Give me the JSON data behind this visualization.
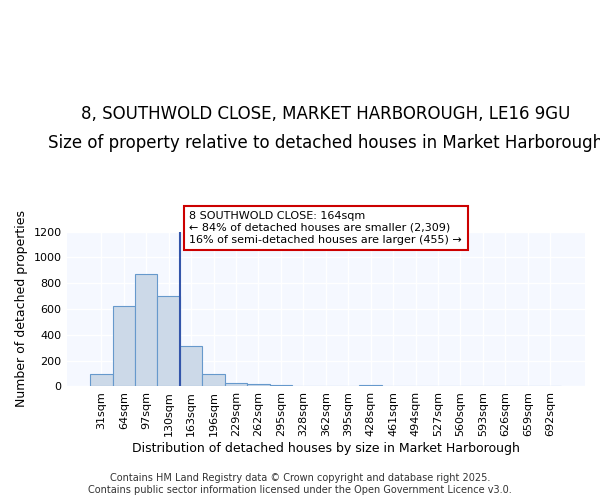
{
  "title_line1": "8, SOUTHWOLD CLOSE, MARKET HARBOROUGH, LE16 9GU",
  "title_line2": "Size of property relative to detached houses in Market Harborough",
  "xlabel": "Distribution of detached houses by size in Market Harborough",
  "ylabel": "Number of detached properties",
  "bar_color": "#ccd9e8",
  "bar_edge_color": "#6699cc",
  "background_color": "#ffffff",
  "plot_bg_color": "#f5f8ff",
  "vline_color": "#3355aa",
  "categories": [
    "31sqm",
    "64sqm",
    "97sqm",
    "130sqm",
    "163sqm",
    "196sqm",
    "229sqm",
    "262sqm",
    "295sqm",
    "328sqm",
    "362sqm",
    "395sqm",
    "428sqm",
    "461sqm",
    "494sqm",
    "527sqm",
    "560sqm",
    "593sqm",
    "626sqm",
    "659sqm",
    "692sqm"
  ],
  "values": [
    100,
    620,
    870,
    700,
    310,
    100,
    30,
    20,
    10,
    0,
    0,
    0,
    10,
    0,
    0,
    0,
    0,
    0,
    0,
    0,
    0
  ],
  "vline_x": 3.5,
  "annotation_text": "8 SOUTHWOLD CLOSE: 164sqm\n← 84% of detached houses are smaller (2,309)\n16% of semi-detached houses are larger (455) →",
  "annotation_box_color": "#ffffff",
  "annotation_edge_color": "#cc0000",
  "ylim": [
    0,
    1200
  ],
  "yticks": [
    0,
    200,
    400,
    600,
    800,
    1000,
    1200
  ],
  "footer_line1": "Contains HM Land Registry data © Crown copyright and database right 2025.",
  "footer_line2": "Contains public sector information licensed under the Open Government Licence v3.0.",
  "title_fontsize": 12,
  "subtitle_fontsize": 10,
  "axis_label_fontsize": 9,
  "tick_fontsize": 8,
  "annotation_fontsize": 8,
  "footer_fontsize": 7
}
